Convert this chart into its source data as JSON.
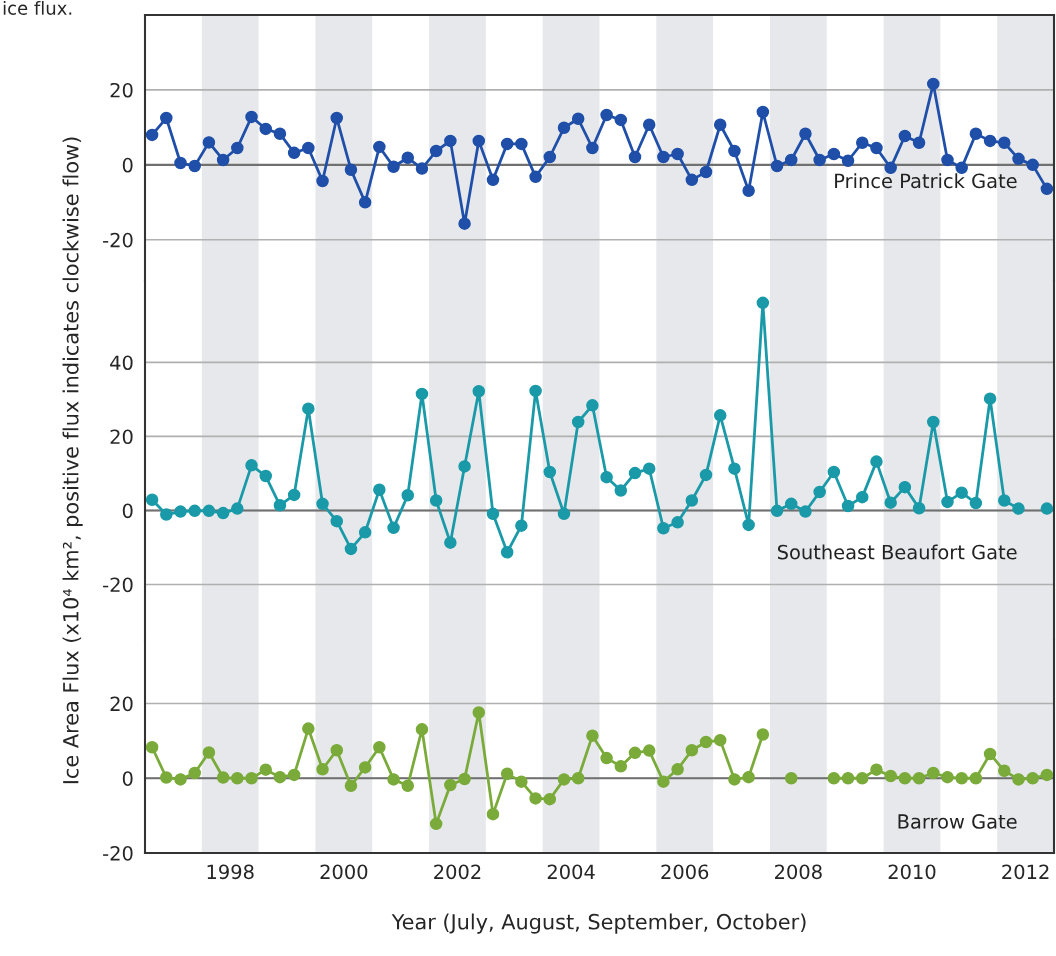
{
  "chart_data": [
    {
      "type": "line",
      "annotations": [
        "ice flux."
      ],
      "x": [
        1996.625,
        1996.875,
        1997.125,
        1997.375,
        1997.625,
        1997.875,
        1998.125,
        1998.375,
        1998.625,
        1998.875,
        1999.125,
        1999.375,
        1999.625,
        1999.875,
        2000.125,
        2000.375,
        2000.625,
        2000.875,
        2001.125,
        2001.375,
        2001.625,
        2001.875,
        2002.125,
        2002.375,
        2002.625,
        2002.875,
        2003.125,
        2003.375,
        2003.625,
        2003.875,
        2004.125,
        2004.375,
        2004.625,
        2004.875,
        2005.125,
        2005.375,
        2005.625,
        2005.875,
        2006.125,
        2006.375,
        2006.625,
        2006.875,
        2007.125,
        2007.375,
        2007.625,
        2007.875,
        2008.125,
        2008.375,
        2008.625,
        2008.875,
        2009.125,
        2009.375,
        2009.625,
        2009.875,
        2010.125,
        2010.375,
        2010.625,
        2010.875,
        2011.125,
        2011.375,
        2011.625,
        2011.875,
        2012.125,
        2012.375
      ],
      "series": [
        {
          "name": "Prince Patrick Gate",
          "color": "#1f4fa8",
          "values": [
            8,
            12.5,
            0.5,
            -0.3,
            6,
            1.3,
            4.5,
            12.8,
            9.6,
            8.3,
            3.2,
            4.5,
            -4.3,
            12.5,
            -1.3,
            -10,
            4.8,
            -0.5,
            1.9,
            -1,
            3.7,
            6.4,
            -15.7,
            6.4,
            -4,
            5.6,
            5.6,
            -3.2,
            2.1,
            9.9,
            12.3,
            4.5,
            13.3,
            12,
            2.1,
            10.7,
            2.1,
            2.9,
            -4,
            -1.9,
            10.7,
            3.7,
            -6.9,
            14.1,
            -0.3,
            1.3,
            8.3,
            1.3,
            2.9,
            1.1,
            5.9,
            4.5,
            -0.8,
            7.7,
            5.9,
            21.6,
            1.3,
            -0.8,
            8.3,
            6.4,
            5.9,
            1.6,
            0,
            -6.4
          ]
        }
      ],
      "xlim": [
        1996.5,
        2012.5
      ],
      "xticks": [
        1998,
        2000,
        2002,
        2004,
        2006,
        2008,
        2010,
        2012
      ],
      "ylim": [
        -31,
        40
      ],
      "yticks": [
        -20,
        0,
        20
      ],
      "tick_labels": "y",
      "grid": "y",
      "marker": "circle",
      "line_style": "solid",
      "legend": false,
      "ref_lines": [
        {
          "axis": "y",
          "value": 0,
          "color": "#707070"
        }
      ],
      "bands": [
        {
          "axis": "x",
          "from": 1997.5,
          "to": 1998.5,
          "color": "#e6e8eb"
        },
        {
          "axis": "x",
          "from": 1999.5,
          "to": 2000.5,
          "color": "#e6e8eb"
        },
        {
          "axis": "x",
          "from": 2001.5,
          "to": 2002.5,
          "color": "#e6e8eb"
        },
        {
          "axis": "x",
          "from": 2003.5,
          "to": 2004.5,
          "color": "#e6e8eb"
        },
        {
          "axis": "x",
          "from": 2005.5,
          "to": 2006.5,
          "color": "#e6e8eb"
        },
        {
          "axis": "x",
          "from": 2007.5,
          "to": 2008.5,
          "color": "#e6e8eb"
        },
        {
          "axis": "x",
          "from": 2009.5,
          "to": 2010.5,
          "color": "#e6e8eb"
        },
        {
          "axis": "x",
          "from": 2011.5,
          "to": 2012.5,
          "color": "#e6e8eb"
        }
      ]
    },
    {
      "type": "line",
      "ylabel": "Ice Area Flux (x10⁴ km², positive flux indicates clockwise flow)",
      "x": [
        1996.625,
        1996.875,
        1997.125,
        1997.375,
        1997.625,
        1997.875,
        1998.125,
        1998.375,
        1998.625,
        1998.875,
        1999.125,
        1999.375,
        1999.625,
        1999.875,
        2000.125,
        2000.375,
        2000.625,
        2000.875,
        2001.125,
        2001.375,
        2001.625,
        2001.875,
        2002.125,
        2002.375,
        2002.625,
        2002.875,
        2003.125,
        2003.375,
        2003.625,
        2003.875,
        2004.125,
        2004.375,
        2004.625,
        2004.875,
        2005.125,
        2005.375,
        2005.625,
        2005.875,
        2006.125,
        2006.375,
        2006.625,
        2006.875,
        2007.125,
        2007.375,
        2007.625,
        2007.875,
        2008.125,
        2008.375,
        2008.625,
        2008.875,
        2009.125,
        2009.375,
        2009.625,
        2009.875,
        2010.125,
        2010.375,
        2010.625,
        2010.875,
        2011.125,
        2011.375,
        2011.625,
        2011.875,
        2012.125,
        2012.375
      ],
      "series": [
        {
          "name": "Southeast Beaufort Gate",
          "color": "#1a9aa8",
          "values": [
            2.9,
            -1.1,
            -0.3,
            -0.1,
            -0.1,
            -0.7,
            0.5,
            12.2,
            9.3,
            1.4,
            4.2,
            27.5,
            1.8,
            -2.9,
            -10.4,
            -5.9,
            5.6,
            -4.7,
            4.1,
            31.5,
            2.7,
            -8.7,
            11.9,
            32.2,
            -0.9,
            -11.3,
            -4.1,
            32.3,
            10.4,
            -0.9,
            23.9,
            28.4,
            9,
            5.4,
            10.1,
            11.3,
            -4.8,
            -3.2,
            2.7,
            9.6,
            25.7,
            11.3,
            -3.9,
            56.1,
            -0.1,
            1.8,
            -0.3,
            5,
            10.4,
            1.2,
            3.6,
            13.2,
            2.1,
            6.3,
            0.6,
            23.9,
            2.3,
            4.8,
            2,
            30.2,
            2.7,
            0.5,
            null,
            0.5
          ]
        }
      ],
      "xlim": [
        1996.5,
        2012.5
      ],
      "xticks": [
        1998,
        2000,
        2002,
        2004,
        2006,
        2008,
        2010,
        2012
      ],
      "ylim": [
        -35,
        62
      ],
      "yticks": [
        -20,
        0,
        20,
        40
      ],
      "tick_labels": "y",
      "grid": "y",
      "marker": "circle",
      "line_style": "solid",
      "legend": false,
      "ref_lines": [
        {
          "axis": "y",
          "value": 0,
          "color": "#707070"
        }
      ],
      "bands": [
        {
          "axis": "x",
          "from": 1997.5,
          "to": 1998.5,
          "color": "#e6e8eb"
        },
        {
          "axis": "x",
          "from": 1999.5,
          "to": 2000.5,
          "color": "#e6e8eb"
        },
        {
          "axis": "x",
          "from": 2001.5,
          "to": 2002.5,
          "color": "#e6e8eb"
        },
        {
          "axis": "x",
          "from": 2003.5,
          "to": 2004.5,
          "color": "#e6e8eb"
        },
        {
          "axis": "x",
          "from": 2005.5,
          "to": 2006.5,
          "color": "#e6e8eb"
        },
        {
          "axis": "x",
          "from": 2007.5,
          "to": 2008.5,
          "color": "#e6e8eb"
        },
        {
          "axis": "x",
          "from": 2009.5,
          "to": 2010.5,
          "color": "#e6e8eb"
        },
        {
          "axis": "x",
          "from": 2011.5,
          "to": 2012.5,
          "color": "#e6e8eb"
        }
      ]
    },
    {
      "type": "line",
      "xlabel": "Year (July, August, September, October)",
      "x": [
        1996.625,
        1996.875,
        1997.125,
        1997.375,
        1997.625,
        1997.875,
        1998.125,
        1998.375,
        1998.625,
        1998.875,
        1999.125,
        1999.375,
        1999.625,
        1999.875,
        2000.125,
        2000.375,
        2000.625,
        2000.875,
        2001.125,
        2001.375,
        2001.625,
        2001.875,
        2002.125,
        2002.375,
        2002.625,
        2002.875,
        2003.125,
        2003.375,
        2003.625,
        2003.875,
        2004.125,
        2004.375,
        2004.625,
        2004.875,
        2005.125,
        2005.375,
        2005.625,
        2005.875,
        2006.125,
        2006.375,
        2006.625,
        2006.875,
        2007.125,
        2007.375,
        2007.625,
        2007.875,
        2008.125,
        2008.375,
        2008.625,
        2008.875,
        2009.125,
        2009.375,
        2009.625,
        2009.875,
        2010.125,
        2010.375,
        2010.625,
        2010.875,
        2011.125,
        2011.375,
        2011.625,
        2011.875,
        2012.125,
        2012.375
      ],
      "series": [
        {
          "name": "Barrow Gate",
          "color": "#7aab3a",
          "values": [
            8.3,
            0.2,
            -0.3,
            1.4,
            6.9,
            0.2,
            0,
            0,
            2.3,
            0.3,
            0.9,
            13.3,
            2.4,
            7.5,
            -2,
            2.9,
            8.3,
            -0.3,
            -2,
            13.1,
            -12.2,
            -1.8,
            -0.2,
            17.6,
            -9.6,
            1.2,
            -0.9,
            -5.4,
            -5.6,
            -0.3,
            0,
            11.4,
            5.4,
            3.2,
            6.8,
            7.4,
            -0.9,
            2.4,
            7.5,
            9.7,
            10.2,
            -0.3,
            0.3,
            11.7,
            null,
            0,
            null,
            null,
            0,
            0,
            0,
            2.3,
            0.6,
            0,
            0,
            1.4,
            0.3,
            0,
            0,
            6.5,
            2,
            -0.3,
            0,
            0.9
          ]
        }
      ],
      "xlim": [
        1996.5,
        2012.5
      ],
      "xticks": [
        1998,
        2000,
        2002,
        2004,
        2006,
        2008,
        2010,
        2012
      ],
      "ylim": [
        -20,
        37
      ],
      "yticks": [
        -20,
        0,
        20
      ],
      "grid": "y",
      "marker": "circle",
      "line_style": "solid",
      "legend": false,
      "ref_lines": [
        {
          "axis": "y",
          "value": 0,
          "color": "#707070"
        }
      ],
      "bands": [
        {
          "axis": "x",
          "from": 1997.5,
          "to": 1998.5,
          "color": "#e6e8eb"
        },
        {
          "axis": "x",
          "from": 1999.5,
          "to": 2000.5,
          "color": "#e6e8eb"
        },
        {
          "axis": "x",
          "from": 2001.5,
          "to": 2002.5,
          "color": "#e6e8eb"
        },
        {
          "axis": "x",
          "from": 2003.5,
          "to": 2004.5,
          "color": "#e6e8eb"
        },
        {
          "axis": "x",
          "from": 2005.5,
          "to": 2006.5,
          "color": "#e6e8eb"
        },
        {
          "axis": "x",
          "from": 2007.5,
          "to": 2008.5,
          "color": "#e6e8eb"
        },
        {
          "axis": "x",
          "from": 2009.5,
          "to": 2010.5,
          "color": "#e6e8eb"
        },
        {
          "axis": "x",
          "from": 2011.5,
          "to": 2012.5,
          "color": "#e6e8eb"
        }
      ]
    }
  ]
}
